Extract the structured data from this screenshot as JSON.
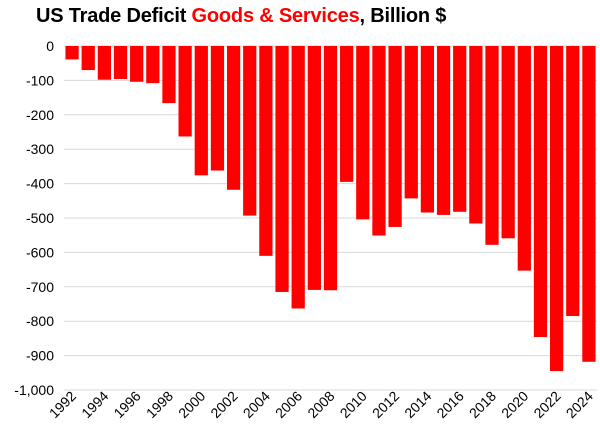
{
  "chart_data": {
    "type": "bar",
    "title": {
      "part1": "US Trade Deficit ",
      "part2": "Goods & Services",
      "part3": ", Billion $"
    },
    "title_highlight_color": "#ff0000",
    "bar_color": "#ff0000",
    "categories": [
      "1992",
      "1993",
      "1994",
      "1995",
      "1996",
      "1997",
      "1998",
      "1999",
      "2000",
      "2001",
      "2002",
      "2003",
      "2004",
      "2005",
      "2006",
      "2007",
      "2008",
      "2009",
      "2010",
      "2011",
      "2012",
      "2013",
      "2014",
      "2015",
      "2016",
      "2017",
      "2018",
      "2019",
      "2020",
      "2021",
      "2022",
      "2023",
      "2024"
    ],
    "values": [
      -39,
      -70,
      -98,
      -96,
      -104,
      -108,
      -166,
      -263,
      -376,
      -362,
      -418,
      -493,
      -610,
      -715,
      -763,
      -709,
      -710,
      -395,
      -504,
      -551,
      -526,
      -443,
      -484,
      -491,
      -482,
      -516,
      -578,
      -559,
      -653,
      -846,
      -945,
      -785,
      -918
    ],
    "x_tick_labels": [
      "1992",
      "1994",
      "1996",
      "1998",
      "2000",
      "2002",
      "2004",
      "2006",
      "2008",
      "2010",
      "2012",
      "2014",
      "2016",
      "2018",
      "2020",
      "2022",
      "2024"
    ],
    "y_tick_labels": [
      "0",
      "-100",
      "-200",
      "-300",
      "-400",
      "-500",
      "-600",
      "-700",
      "-800",
      "-900",
      "-1,000"
    ],
    "y_ticks": [
      0,
      -100,
      -200,
      -300,
      -400,
      -500,
      -600,
      -700,
      -800,
      -900,
      -1000
    ],
    "ylim": [
      -1000,
      0
    ],
    "grid": true,
    "xlabel": "",
    "ylabel": ""
  }
}
